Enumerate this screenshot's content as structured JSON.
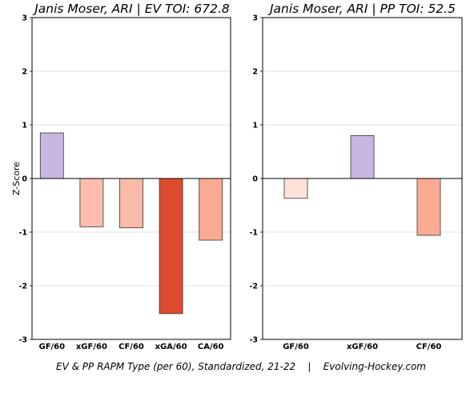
{
  "footer_caption": "EV & PP RAPM Type (per 60), Standardized, 21-22    |    Evolving-Hockey.com",
  "chart_data": [
    {
      "type": "bar",
      "title": "Janis Moser, ARI  |  EV TOI: 672.8",
      "ylabel": "Z-Score",
      "xlabel": "",
      "ylim": [
        -3,
        3
      ],
      "yticks": [
        3,
        2,
        1,
        0,
        -1,
        -2,
        -3
      ],
      "grid": true,
      "categories": [
        "GF/60",
        "xGF/60",
        "CF/60",
        "xGA/60",
        "CA/60"
      ],
      "values": [
        0.85,
        -0.9,
        -0.92,
        -2.52,
        -1.15
      ],
      "colors": [
        "#c8b7e0",
        "#fcbdae",
        "#fbbaa7",
        "#de4a2f",
        "#fcab93"
      ]
    },
    {
      "type": "bar",
      "title": "Janis Moser, ARI  |  PP TOI: 52.5",
      "ylabel": "",
      "xlabel": "",
      "ylim": [
        -3,
        3
      ],
      "yticks": [
        3,
        2,
        1,
        0,
        -1,
        -2,
        -3
      ],
      "grid": true,
      "categories": [
        "GF/60",
        "xGF/60",
        "CF/60"
      ],
      "values": [
        -0.37,
        0.8,
        -1.06
      ],
      "colors": [
        "#fde2d9",
        "#c8b7e0",
        "#fcab93"
      ]
    }
  ]
}
